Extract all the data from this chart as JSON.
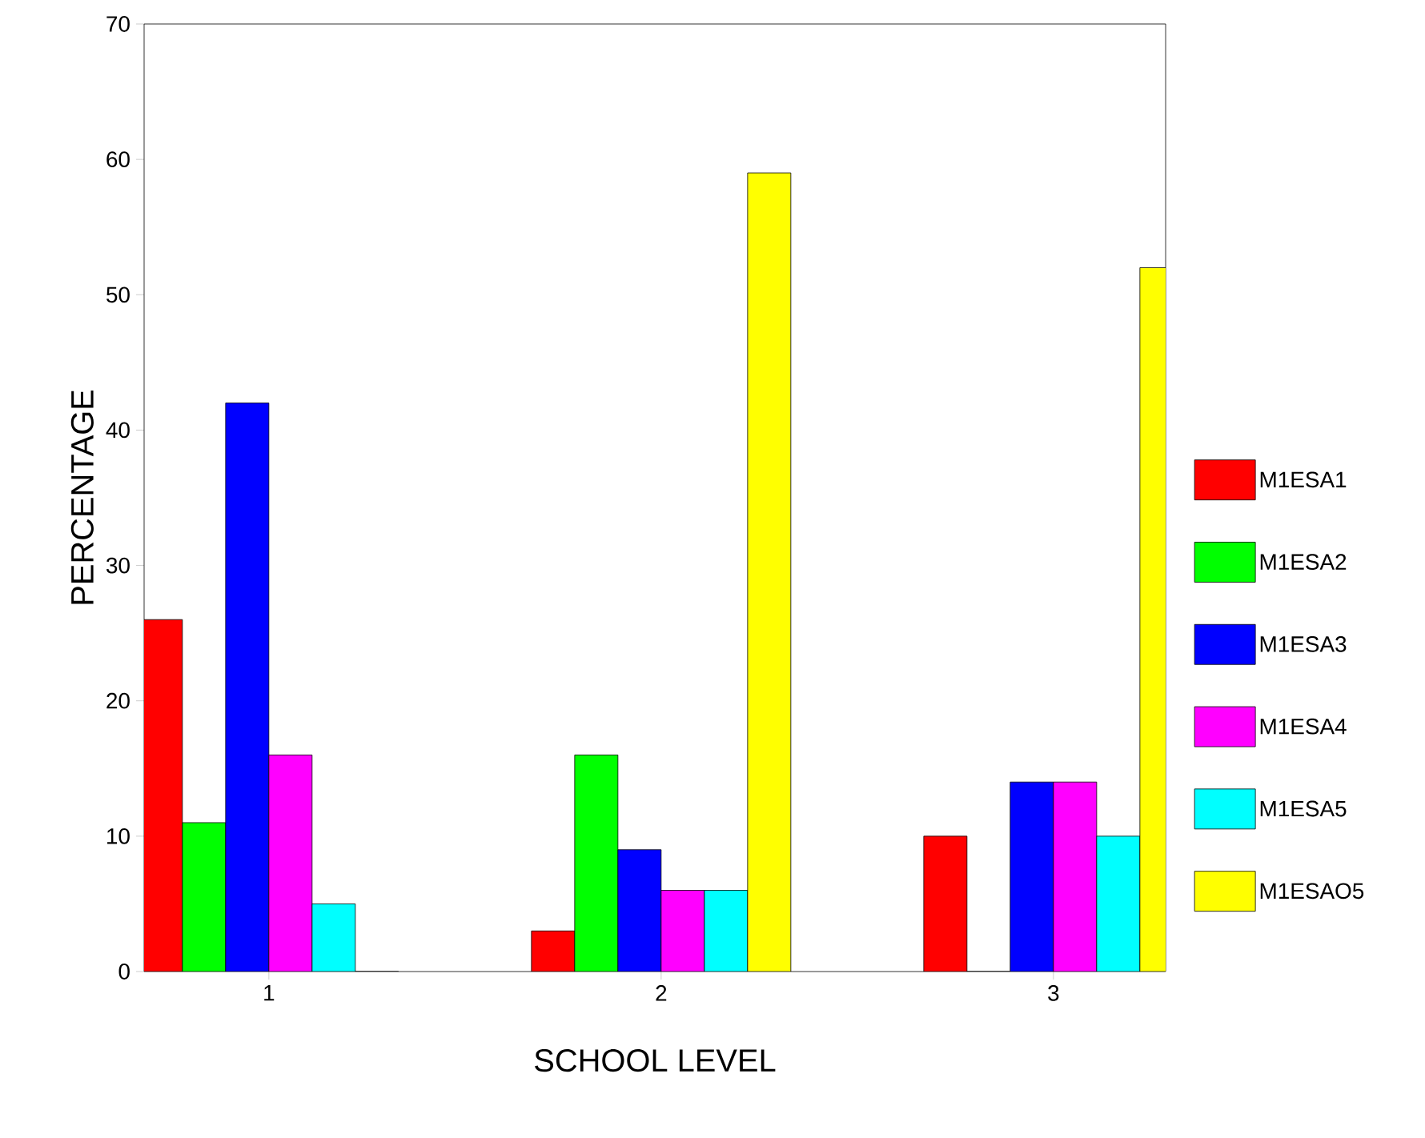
{
  "chart_data": {
    "type": "bar",
    "xlabel": "SCHOOL LEVEL",
    "ylabel": "PERCENTAGE",
    "categories": [
      "1",
      "2",
      "3"
    ],
    "series": [
      {
        "name": "M1ESA1",
        "color": "#ff0000",
        "values": [
          26,
          3,
          10
        ]
      },
      {
        "name": "M1ESA2",
        "color": "#00ff00",
        "values": [
          11,
          16,
          0
        ]
      },
      {
        "name": "M1ESA3",
        "color": "#0000ff",
        "values": [
          42,
          9,
          14
        ]
      },
      {
        "name": "M1ESA4",
        "color": "#ff00ff",
        "values": [
          16,
          6,
          14
        ]
      },
      {
        "name": "M1ESA5",
        "color": "#00ffff",
        "values": [
          5,
          6,
          10
        ]
      },
      {
        "name": "M1ESAO5",
        "color": "#ffff00",
        "values": [
          0,
          59,
          52
        ]
      }
    ],
    "ylim": [
      0,
      70
    ],
    "yticks": [
      0,
      10,
      20,
      30,
      40,
      50,
      60,
      70
    ],
    "legend": "right"
  }
}
